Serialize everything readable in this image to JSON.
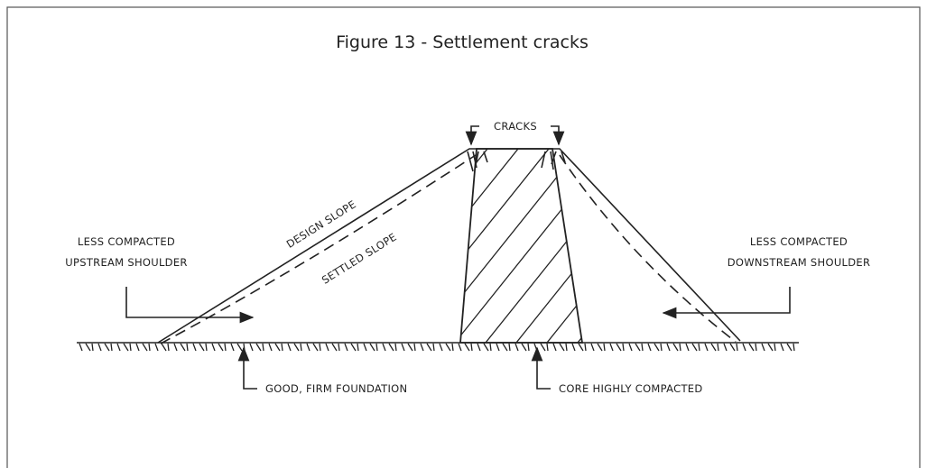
{
  "figure": {
    "title": "Figure 13 - Settlement cracks"
  },
  "labels": {
    "cracks": "CRACKS",
    "design_slope": "DESIGN SLOPE",
    "settled_slope": "SETTLED SLOPE",
    "upstream": [
      "LESS COMPACTED",
      "UPSTREAM SHOULDER"
    ],
    "downstream": [
      "LESS COMPACTED",
      "DOWNSTREAM SHOULDER"
    ],
    "foundation": "GOOD, FIRM FOUNDATION",
    "core": "CORE HIGHLY COMPACTED"
  }
}
